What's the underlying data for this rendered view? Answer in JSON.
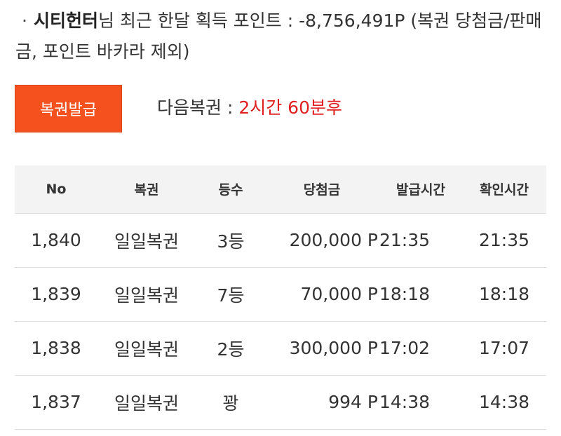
{
  "summary": {
    "bullet": "·",
    "username": "시티헌터",
    "text": "님 최근 한달 획득 포인트 : -8,756,491P (복권 당첨금/판매금, 포인트 바카라 제외)"
  },
  "actions": {
    "issue_button_label": "복권발급",
    "next_label": "다음복권 : ",
    "next_value": "2시간 60분후"
  },
  "colors": {
    "accent": "#f4511e",
    "highlight_text": "#e02020",
    "header_bg": "#f3f3f3"
  },
  "table": {
    "headers": {
      "no": "No",
      "ticket": "복권",
      "rank": "등수",
      "prize": "당첨금",
      "issued": "발급시간",
      "confirmed": "확인시간"
    },
    "rows": [
      {
        "no": "1,840",
        "ticket": "일일복권",
        "rank": "3등",
        "prize": "200,000 P",
        "issued": "21:35",
        "confirmed": "21:35"
      },
      {
        "no": "1,839",
        "ticket": "일일복권",
        "rank": "7등",
        "prize": "70,000 P",
        "issued": "18:18",
        "confirmed": "18:18"
      },
      {
        "no": "1,838",
        "ticket": "일일복권",
        "rank": "2등",
        "prize": "300,000 P",
        "issued": "17:02",
        "confirmed": "17:07"
      },
      {
        "no": "1,837",
        "ticket": "일일복권",
        "rank": "꽝",
        "prize": "994 P",
        "issued": "14:38",
        "confirmed": "14:38"
      }
    ]
  }
}
